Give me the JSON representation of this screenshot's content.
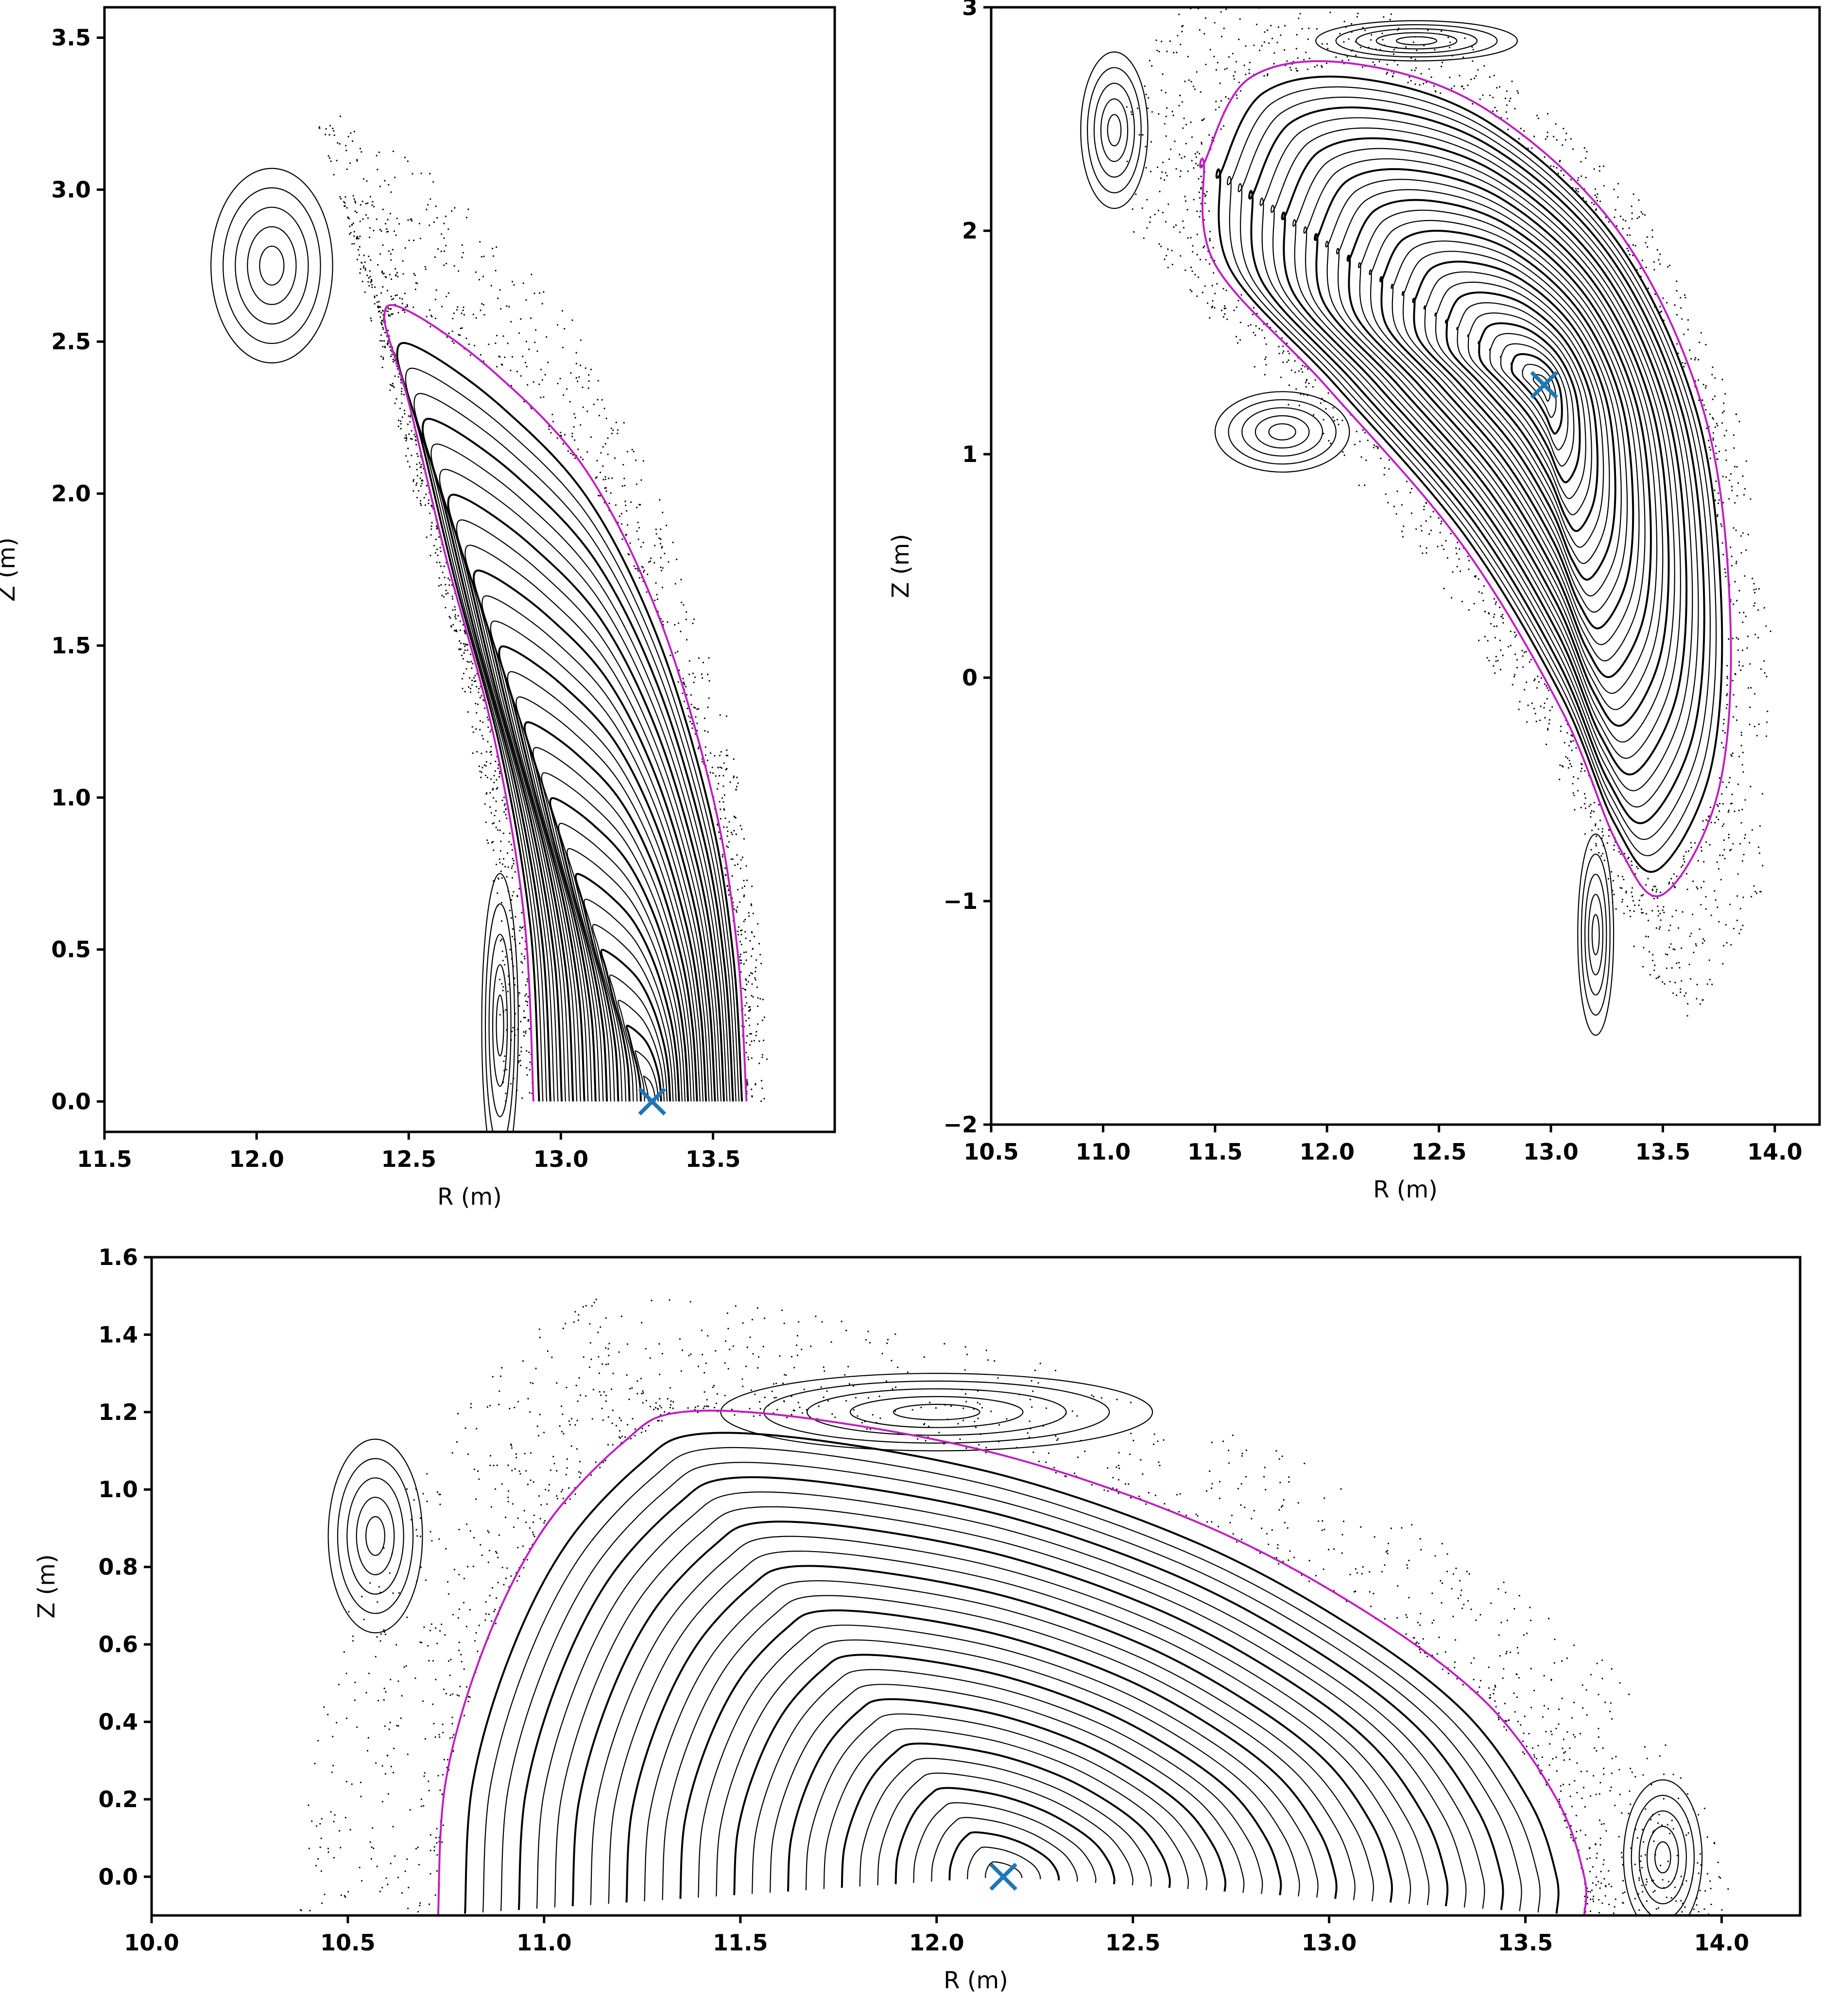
{
  "colors": {
    "background": "#ffffff",
    "surfaces": "#000000",
    "lcfs": "#c020c0",
    "magnetic_axis": "#1f77b4"
  },
  "chart_data": [
    {
      "type": "scatter",
      "name": "panel-top-left",
      "title": "",
      "xlabel": "R   (m)",
      "ylabel": "Z   (m)",
      "xlim": [
        11.5,
        13.9
      ],
      "ylim": [
        -0.1,
        3.6
      ],
      "xticks": [
        11.5,
        12.0,
        12.5,
        13.0,
        13.5
      ],
      "xtick_labels": [
        "11.5",
        "12.0",
        "12.5",
        "13.0",
        "13.5"
      ],
      "yticks": [
        0.0,
        0.5,
        1.0,
        1.5,
        2.0,
        2.5,
        3.0,
        3.5
      ],
      "ytick_labels": [
        "0.0",
        "0.5",
        "1.0",
        "1.5",
        "2.0",
        "2.5",
        "3.0",
        "3.5"
      ],
      "magnetic_axis": {
        "R": 13.3,
        "Z": 0.0
      },
      "lcfs": [
        [
          12.91,
          0.0
        ],
        [
          12.88,
          0.6
        ],
        [
          12.78,
          1.2
        ],
        [
          12.62,
          1.8
        ],
        [
          12.5,
          2.3
        ],
        [
          12.42,
          2.58
        ],
        [
          12.5,
          2.6
        ],
        [
          12.78,
          2.4
        ],
        [
          13.08,
          2.08
        ],
        [
          13.32,
          1.6
        ],
        [
          13.5,
          1.0
        ],
        [
          13.58,
          0.5
        ],
        [
          13.61,
          0.0
        ]
      ],
      "islands": [
        {
          "R": 12.05,
          "Z": 2.75,
          "dR": 0.2,
          "dZ": 0.32
        },
        {
          "R": 12.8,
          "Z": 0.25,
          "dR": 0.06,
          "dZ": 0.5
        }
      ],
      "grid": false
    },
    {
      "type": "scatter",
      "name": "panel-top-right",
      "title": "",
      "xlabel": "R   (m)",
      "ylabel": "Z   (m)",
      "xlim": [
        10.5,
        14.2
      ],
      "ylim": [
        -2.0,
        3.0
      ],
      "xticks": [
        10.5,
        11.0,
        11.5,
        12.0,
        12.5,
        13.0,
        13.5,
        14.0
      ],
      "xtick_labels": [
        "10.5",
        "11.0",
        "11.5",
        "12.0",
        "12.5",
        "13.0",
        "13.5",
        "14.0"
      ],
      "yticks": [
        -2,
        -1,
        0,
        1,
        2,
        3
      ],
      "ytick_labels": [
        "−2",
        "−1",
        "0",
        "1",
        "2",
        "3"
      ],
      "magnetic_axis": {
        "R": 12.97,
        "Z": 1.31
      },
      "lcfs": [
        [
          11.45,
          2.3
        ],
        [
          11.65,
          2.68
        ],
        [
          12.1,
          2.75
        ],
        [
          12.7,
          2.55
        ],
        [
          13.3,
          2.0
        ],
        [
          13.68,
          1.2
        ],
        [
          13.8,
          0.3
        ],
        [
          13.75,
          -0.5
        ],
        [
          13.5,
          -0.97
        ],
        [
          13.3,
          -0.75
        ],
        [
          13.05,
          -0.15
        ],
        [
          12.6,
          0.6
        ],
        [
          12.0,
          1.3
        ],
        [
          11.5,
          1.85
        ],
        [
          11.45,
          2.3
        ]
      ],
      "islands": [
        {
          "R": 11.05,
          "Z": 2.45,
          "dR": 0.15,
          "dZ": 0.35
        },
        {
          "R": 11.8,
          "Z": 1.1,
          "dR": 0.3,
          "dZ": 0.18
        },
        {
          "R": 13.2,
          "Z": -1.15,
          "dR": 0.08,
          "dZ": 0.45
        },
        {
          "R": 12.4,
          "Z": 2.85,
          "dR": 0.45,
          "dZ": 0.09
        }
      ],
      "grid": false
    },
    {
      "type": "scatter",
      "name": "panel-bottom",
      "title": "",
      "xlabel": "R   (m)",
      "ylabel": "Z   (m)",
      "xlim": [
        10.0,
        14.2
      ],
      "ylim": [
        -0.1,
        1.6
      ],
      "xticks": [
        10.0,
        10.5,
        11.0,
        11.5,
        12.0,
        12.5,
        13.0,
        13.5,
        14.0
      ],
      "xtick_labels": [
        "10.0",
        "10.5",
        "11.0",
        "11.5",
        "12.0",
        "12.5",
        "13.0",
        "13.5",
        "14.0"
      ],
      "yticks": [
        0.0,
        0.2,
        0.4,
        0.6,
        0.8,
        1.0,
        1.2,
        1.4,
        1.6
      ],
      "ytick_labels": [
        "0.0",
        "0.2",
        "0.4",
        "0.6",
        "0.8",
        "1.0",
        "1.2",
        "1.4",
        "1.6"
      ],
      "magnetic_axis": {
        "R": 12.17,
        "Z": 0.0
      },
      "lcfs": [
        [
          10.73,
          -0.1
        ],
        [
          10.75,
          0.25
        ],
        [
          10.85,
          0.6
        ],
        [
          11.0,
          0.9
        ],
        [
          11.2,
          1.12
        ],
        [
          11.35,
          1.2
        ],
        [
          11.7,
          1.18
        ],
        [
          12.2,
          1.08
        ],
        [
          12.7,
          0.9
        ],
        [
          13.1,
          0.68
        ],
        [
          13.4,
          0.45
        ],
        [
          13.58,
          0.2
        ],
        [
          13.65,
          0.0
        ],
        [
          13.65,
          -0.1
        ]
      ],
      "islands": [
        {
          "R": 10.57,
          "Z": 0.88,
          "dR": 0.12,
          "dZ": 0.25
        },
        {
          "R": 12.0,
          "Z": 1.2,
          "dR": 0.55,
          "dZ": 0.1
        },
        {
          "R": 13.85,
          "Z": 0.05,
          "dR": 0.1,
          "dZ": 0.2
        }
      ],
      "grid": false
    }
  ]
}
